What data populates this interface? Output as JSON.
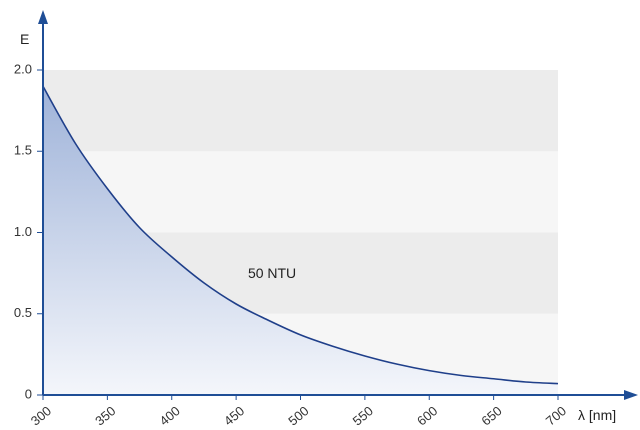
{
  "chart_data": {
    "type": "area",
    "xlabel": "λ [nm]",
    "ylabel": "E",
    "xlim": [
      300,
      700
    ],
    "ylim": [
      0,
      2.0
    ],
    "x_ticks": [
      300,
      350,
      400,
      450,
      500,
      550,
      600,
      650,
      700
    ],
    "x_tick_labels": [
      "300",
      "350",
      "400",
      "450",
      "500",
      "550",
      "600",
      "650",
      "700"
    ],
    "y_ticks": [
      0,
      0.5,
      1.0,
      1.5,
      2.0
    ],
    "y_tick_labels": [
      "0",
      "0.5",
      "1.0",
      "1.5",
      "2.0"
    ],
    "grid": "alternating horizontal bands",
    "annotation": {
      "text": "50 NTU",
      "x": 495,
      "y": 0.72
    },
    "series": [
      {
        "x": [
          300,
          325,
          350,
          375,
          400,
          425,
          450,
          475,
          500,
          525,
          550,
          575,
          600,
          625,
          650,
          675,
          700
        ],
        "values": [
          1.9,
          1.55,
          1.27,
          1.03,
          0.85,
          0.69,
          0.56,
          0.46,
          0.37,
          0.3,
          0.24,
          0.19,
          0.15,
          0.12,
          0.1,
          0.08,
          0.07
        ]
      }
    ]
  },
  "colors": {
    "axis": "#1f4e96",
    "curve": "#1f3f8a",
    "fill_top": "#9fb3d9",
    "fill_bottom": "#f4f6fb",
    "band_dark": "#ececec",
    "band_light": "#f6f6f6"
  }
}
